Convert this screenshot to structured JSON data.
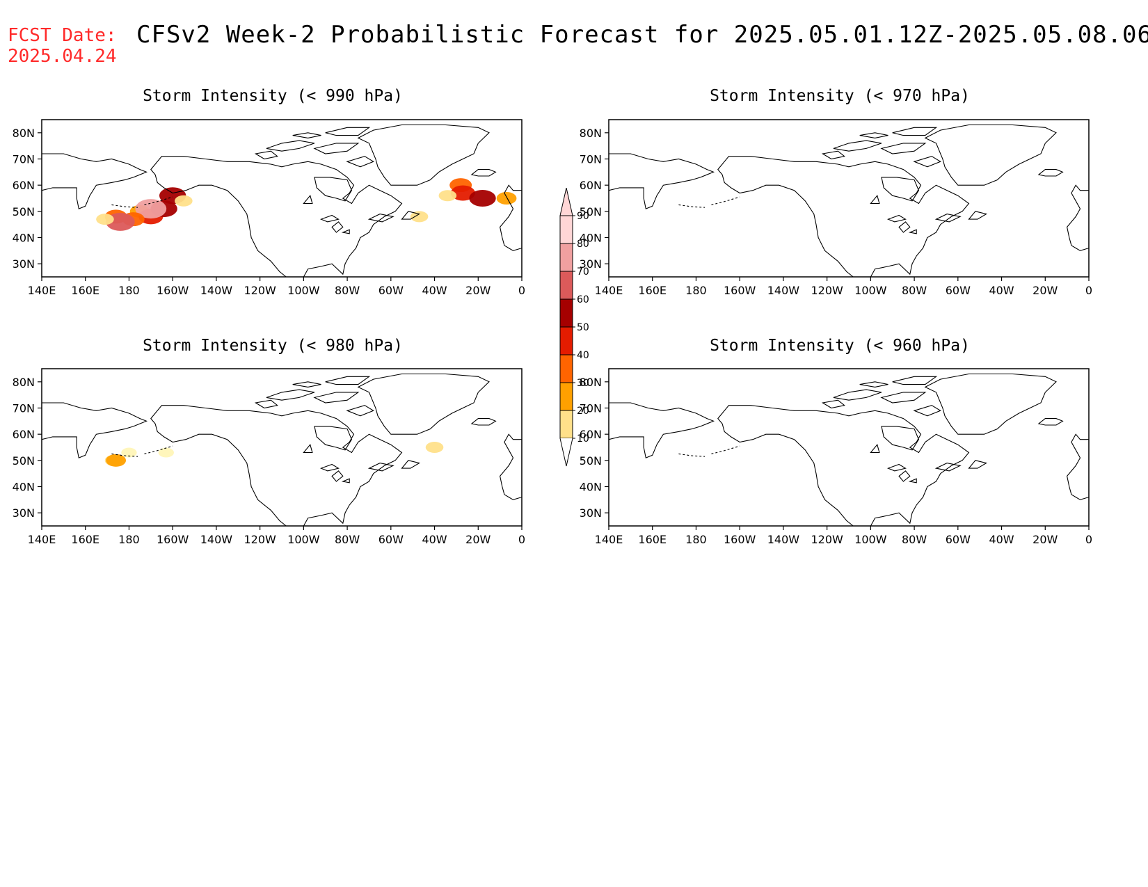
{
  "header": {
    "fcst_label": "FCST Date:",
    "fcst_date": "2025.04.24",
    "title": "CFSv2 Week-2 Probabilistic Forecast for 2025.05.01.12Z-2025.05.08.06Z"
  },
  "axes": {
    "lon_labels": [
      "140E",
      "160E",
      "180",
      "160W",
      "140W",
      "120W",
      "100W",
      "80W",
      "60W",
      "40W",
      "20W",
      "0"
    ],
    "lat_labels": [
      "80N",
      "70N",
      "60N",
      "50N",
      "40N",
      "30N"
    ],
    "lon_range_deg_east": [
      140,
      360
    ],
    "lat_range": [
      25,
      85
    ]
  },
  "panels": [
    {
      "id": "p990",
      "title": "Storm Intensity (< 990 hPa)",
      "blobs": [
        {
          "lon": 185,
          "lat": 50,
          "level": 30
        },
        {
          "lon": 190,
          "lat": 48,
          "level": 50
        },
        {
          "lon": 196,
          "lat": 51,
          "level": 60
        },
        {
          "lon": 190,
          "lat": 51,
          "level": 80
        },
        {
          "lon": 182,
          "lat": 47,
          "level": 40
        },
        {
          "lon": 174,
          "lat": 48,
          "level": 40
        },
        {
          "lon": 176,
          "lat": 46,
          "level": 70
        },
        {
          "lon": 200,
          "lat": 56,
          "level": 60
        },
        {
          "lon": 205,
          "lat": 54,
          "level": 20
        },
        {
          "lon": 169,
          "lat": 47,
          "level": 20
        },
        {
          "lon": 332,
          "lat": 60,
          "level": 40
        },
        {
          "lon": 333,
          "lat": 57,
          "level": 50
        },
        {
          "lon": 342,
          "lat": 55,
          "level": 60
        },
        {
          "lon": 326,
          "lat": 56,
          "level": 20
        },
        {
          "lon": 313,
          "lat": 48,
          "level": 20
        },
        {
          "lon": 353,
          "lat": 55,
          "level": 30
        }
      ]
    },
    {
      "id": "p970",
      "title": "Storm Intensity (< 970 hPa)",
      "blobs": []
    },
    {
      "id": "p980",
      "title": "Storm Intensity (< 980 hPa)",
      "blobs": [
        {
          "lon": 173,
          "lat": 50,
          "level": 20
        },
        {
          "lon": 174,
          "lat": 50,
          "level": 30
        },
        {
          "lon": 180,
          "lat": 53,
          "level": 10
        },
        {
          "lon": 197,
          "lat": 53,
          "level": 10
        },
        {
          "lon": 320,
          "lat": 55,
          "level": 20
        }
      ]
    },
    {
      "id": "p960",
      "title": "Storm Intensity (< 960 hPa)",
      "blobs": []
    }
  ],
  "colorbar": {
    "labels": [
      "10",
      "20",
      "30",
      "40",
      "50",
      "60",
      "70",
      "80",
      "90"
    ],
    "colors": [
      "#fff6b8",
      "#ffe08a",
      "#ffa000",
      "#ff6400",
      "#e41c00",
      "#a50000",
      "#dc5a5a",
      "#f0a0a0",
      "#ffd6d6"
    ]
  }
}
